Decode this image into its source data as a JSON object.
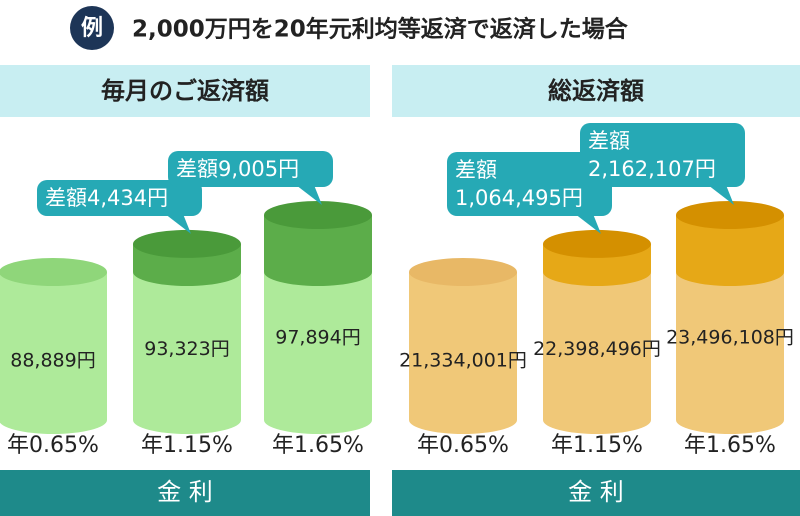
{
  "badge": "例",
  "title": "2,000万円を20年元利均等返済で返済した場合",
  "chart_data": [
    {
      "type": "cylinder",
      "title": "毎月のご返済額",
      "x_label": "金 利",
      "categories": [
        "年0.65%",
        "年1.15%",
        "年1.65%"
      ],
      "values": [
        88889,
        93323,
        97894
      ],
      "value_labels": [
        "88,889円",
        "93,323円",
        "97,894円"
      ],
      "differences": [
        null,
        4434,
        9005
      ],
      "difference_labels": [
        null,
        "差額4,434円",
        "差額9,005円"
      ],
      "color": "#aeea9a",
      "top_color": "#8fd67a",
      "difference_color": "#5cad4a",
      "difference_top_color": "#4a9a3a"
    },
    {
      "type": "cylinder",
      "title": "総返済額",
      "x_label": "金 利",
      "categories": [
        "年0.65%",
        "年1.15%",
        "年1.65%"
      ],
      "values": [
        21334001,
        22398496,
        23496108
      ],
      "value_labels": [
        "21,334,001円",
        "22,398,496円",
        "23,496,108円"
      ],
      "differences": [
        null,
        1064495,
        2162107
      ],
      "difference_labels": [
        null,
        "差額\n1,064,495円",
        "差額\n2,162,107円"
      ],
      "color": "#f0c878",
      "top_color": "#e8b866",
      "difference_color": "#e6a817",
      "difference_top_color": "#d49000"
    }
  ]
}
